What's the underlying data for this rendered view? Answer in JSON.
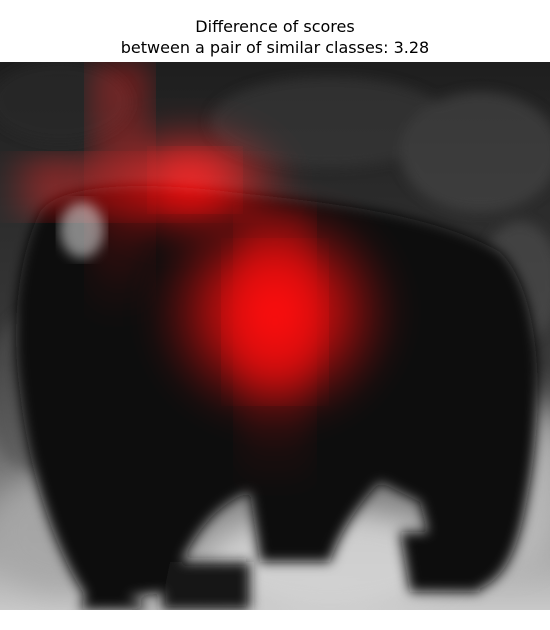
{
  "title": {
    "line1": "Difference of scores",
    "line2": "between a pair of similar classes: 3.28"
  },
  "image": {
    "subject": "black-dog-photo",
    "heatmap_color": "#ff0000"
  }
}
